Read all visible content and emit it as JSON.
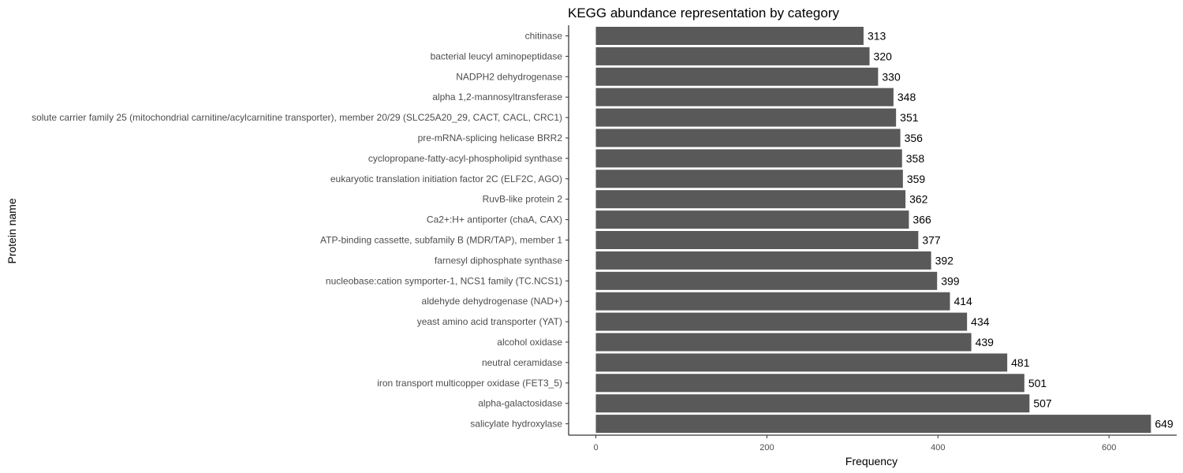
{
  "chart_data": {
    "type": "bar",
    "orientation": "horizontal",
    "title": "KEGG abundance representation by category",
    "xlabel": "Frequency",
    "ylabel": "Protein name",
    "xlim": [
      0,
      650
    ],
    "xticks": [
      0,
      200,
      400,
      600
    ],
    "grid": false,
    "bar_color": "#595959",
    "categories": [
      "chitinase",
      "bacterial leucyl aminopeptidase",
      "NADPH2 dehydrogenase",
      "alpha 1,2-mannosyltransferase",
      "solute carrier family 25 (mitochondrial carnitine/acylcarnitine transporter), member 20/29 (SLC25A20_29, CACT, CACL, CRC1)",
      "pre-mRNA-splicing helicase BRR2",
      "cyclopropane-fatty-acyl-phospholipid synthase",
      "eukaryotic translation initiation factor 2C (ELF2C, AGO)",
      "RuvB-like protein 2",
      "Ca2+:H+ antiporter (chaA, CAX)",
      "ATP-binding cassette, subfamily B (MDR/TAP), member 1",
      "farnesyl diphosphate synthase",
      "nucleobase:cation symporter-1, NCS1 family (TC.NCS1)",
      "aldehyde dehydrogenase (NAD+)",
      "yeast amino acid transporter (YAT)",
      "alcohol oxidase",
      "neutral ceramidase",
      "iron transport multicopper oxidase (FET3_5)",
      "alpha-galactosidase",
      "salicylate hydroxylase"
    ],
    "values": [
      313,
      320,
      330,
      348,
      351,
      356,
      358,
      359,
      362,
      366,
      377,
      392,
      399,
      414,
      434,
      439,
      481,
      501,
      507,
      649
    ]
  }
}
